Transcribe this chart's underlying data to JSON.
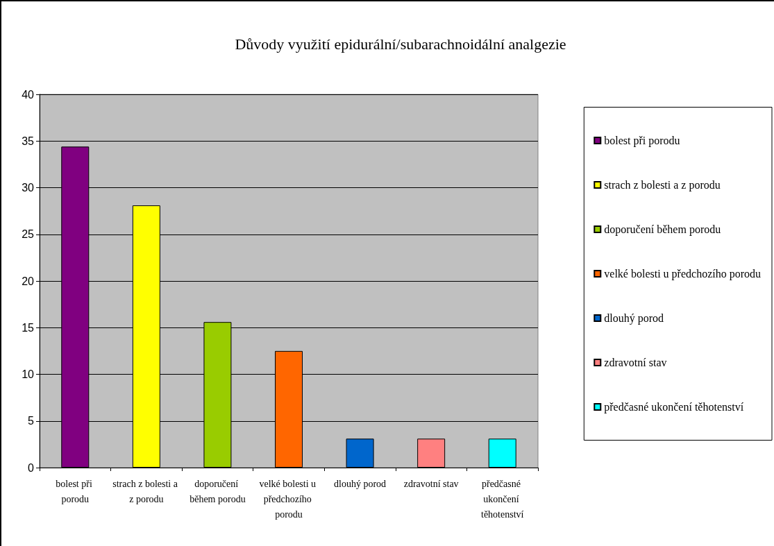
{
  "chart_data": {
    "type": "bar",
    "title": "Důvody využití epidurální/subarachnoidální analgezie",
    "categories": [
      "bolest při porodu",
      "strach z bolesti a z porodu",
      "doporučení během porodu",
      "velké bolesti u předchozího porodu",
      "dlouhý porod",
      "zdravotní stav",
      "předčasné ukončení těhotenství"
    ],
    "series": [
      {
        "name": "bolest při porodu",
        "color": "#800080",
        "values": [
          34.4,
          null,
          null,
          null,
          null,
          null,
          null
        ]
      },
      {
        "name": "strach z bolesti a z porodu",
        "color": "#ffff00",
        "values": [
          null,
          28.1,
          null,
          null,
          null,
          null,
          null
        ]
      },
      {
        "name": "doporučení během porodu",
        "color": "#99cc00",
        "values": [
          null,
          null,
          15.6,
          null,
          null,
          null,
          null
        ]
      },
      {
        "name": "velké bolesti u předchozího porodu",
        "color": "#ff6600",
        "values": [
          null,
          null,
          null,
          12.5,
          null,
          null,
          null
        ]
      },
      {
        "name": "dlouhý porod",
        "color": "#0066cc",
        "values": [
          null,
          null,
          null,
          null,
          3.1,
          null,
          null
        ]
      },
      {
        "name": "zdravotní stav",
        "color": "#ff8080",
        "values": [
          null,
          null,
          null,
          null,
          null,
          3.1,
          null
        ]
      },
      {
        "name": "předčasné ukončení těhotenství",
        "color": "#00ffff",
        "values": [
          null,
          null,
          null,
          null,
          null,
          null,
          3.1
        ]
      }
    ],
    "ylim": [
      0,
      40
    ],
    "yticks": [
      0,
      5,
      10,
      15,
      20,
      25,
      30,
      35,
      40
    ],
    "grid": "y",
    "legend": "right"
  }
}
